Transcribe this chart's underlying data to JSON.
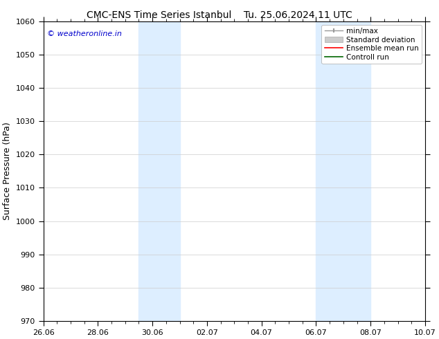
{
  "title_left": "CMC-ENS Time Series Istanbul",
  "title_right": "Tu. 25.06.2024 11 UTC",
  "ylabel": "Surface Pressure (hPa)",
  "ylim": [
    970,
    1060
  ],
  "yticks": [
    970,
    980,
    990,
    1000,
    1010,
    1020,
    1030,
    1040,
    1050,
    1060
  ],
  "xtick_labels": [
    "26.06",
    "28.06",
    "30.06",
    "02.07",
    "04.07",
    "06.07",
    "08.07",
    "10.07"
  ],
  "xtick_positions": [
    0,
    2,
    4,
    6,
    8,
    10,
    12,
    14
  ],
  "watermark": "© weatheronline.in",
  "watermark_color": "#0000cc",
  "bg_color": "#ffffff",
  "shaded_bands": [
    {
      "x_start": 3.5,
      "x_end": 5.0
    },
    {
      "x_start": 10.0,
      "x_end": 12.0
    }
  ],
  "shade_color": "#ddeeff",
  "legend_items": [
    {
      "label": "min/max",
      "color": "#aaaaaa",
      "style": "errorbar"
    },
    {
      "label": "Standard deviation",
      "color": "#cccccc",
      "style": "bar"
    },
    {
      "label": "Ensemble mean run",
      "color": "#ff0000",
      "style": "line"
    },
    {
      "label": "Controll run",
      "color": "#006600",
      "style": "line"
    }
  ],
  "total_days": 14,
  "font_size_title": 10,
  "font_size_axis": 9,
  "font_size_ticks": 8,
  "font_size_legend": 7.5,
  "font_size_watermark": 8
}
